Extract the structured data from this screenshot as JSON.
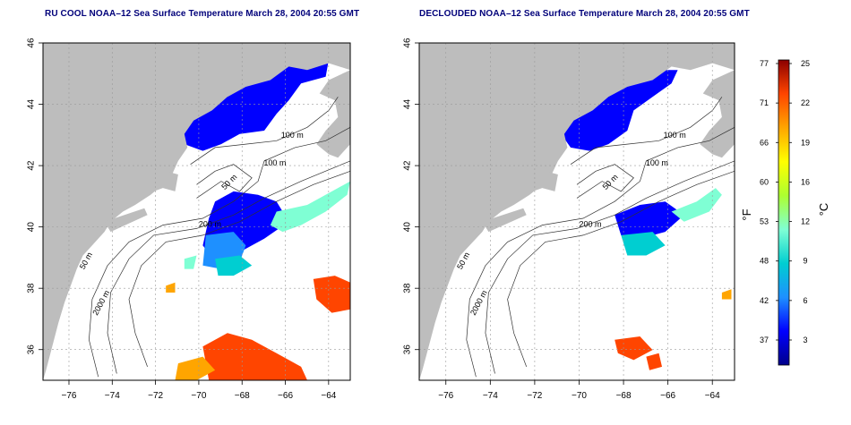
{
  "maps": [
    {
      "title": "RU COOL NOAA–12 Sea Surface Temperature March 28, 2004 20:55 GMT",
      "variant": "raw"
    },
    {
      "title": "DECLOUDED NOAA–12 Sea Surface Temperature March 28, 2004 20:55 GMT",
      "variant": "declouded"
    }
  ],
  "axes": {
    "lon_ticks": [
      "−76",
      "−74",
      "−72",
      "−70",
      "−68",
      "−66",
      "−64"
    ],
    "lat_ticks": [
      "36",
      "38",
      "40",
      "42",
      "44",
      "46"
    ],
    "lon_range": [
      -77.2,
      -63.0
    ],
    "lat_range": [
      35.0,
      46.0
    ]
  },
  "contour_labels": [
    {
      "text": "100 m",
      "lon": -66.2,
      "lat": 42.9
    },
    {
      "text": "100 m",
      "lon": -67.0,
      "lat": 42.0
    },
    {
      "text": "50 m",
      "lon": -68.8,
      "lat": 41.2
    },
    {
      "text": "200 m",
      "lon": -70.0,
      "lat": 40.0
    },
    {
      "text": "50 m",
      "lon": -75.3,
      "lat": 38.6
    },
    {
      "text": "2000 m",
      "lon": -74.7,
      "lat": 37.1
    }
  ],
  "colorbar": {
    "fahrenheit_unit": "°F",
    "celsius_unit": "°C",
    "fahrenheit_ticks": [
      "77",
      "71",
      "66",
      "60",
      "53",
      "48",
      "42",
      "37"
    ],
    "celsius_ticks": [
      "25",
      "22",
      "19",
      "16",
      "12",
      "9",
      "6",
      "3"
    ],
    "colors": [
      "#00008b",
      "#0000ff",
      "#1e90ff",
      "#00ced1",
      "#7fffd4",
      "#adff2f",
      "#ffff00",
      "#ffa500",
      "#ff4500",
      "#8b0000"
    ]
  },
  "colors": {
    "land": "#bdbdbd",
    "grid": "#9a9a9a",
    "contour": "#303030",
    "title": "#00007a"
  }
}
